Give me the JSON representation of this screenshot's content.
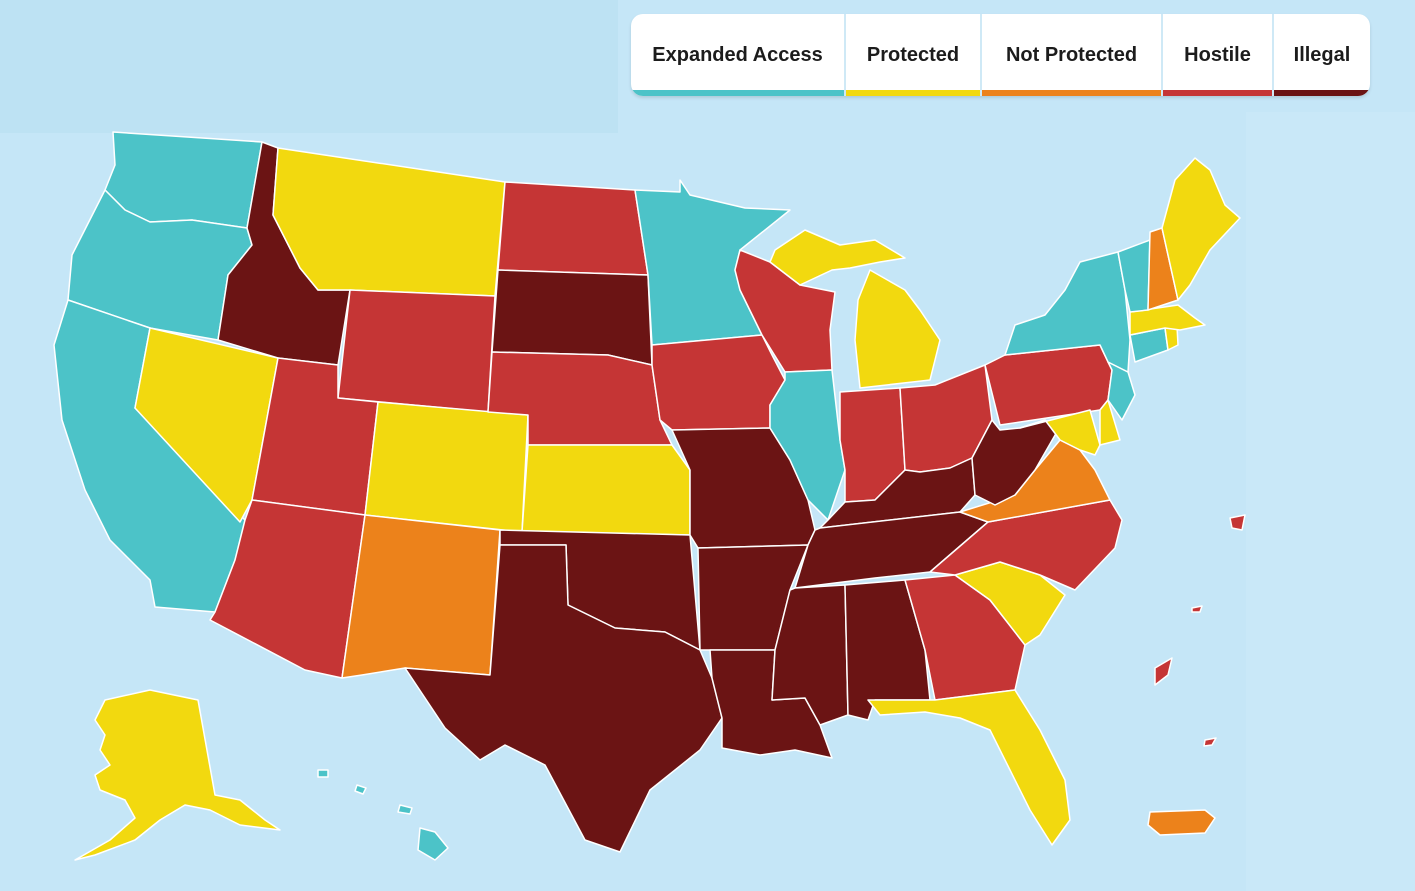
{
  "legend": {
    "items": [
      {
        "label": "Expanded Access",
        "color": "#4cc3c8"
      },
      {
        "label": "Protected",
        "color": "#f2d90f"
      },
      {
        "label": "Not Protected",
        "color": "#ec821b"
      },
      {
        "label": "Hostile",
        "color": "#c53535"
      },
      {
        "label": "Illegal",
        "color": "#6b1414"
      }
    ]
  },
  "states": [
    {
      "code": "WA",
      "status": "Expanded Access"
    },
    {
      "code": "OR",
      "status": "Expanded Access"
    },
    {
      "code": "CA",
      "status": "Expanded Access"
    },
    {
      "code": "NV",
      "status": "Protected"
    },
    {
      "code": "ID",
      "status": "Illegal"
    },
    {
      "code": "MT",
      "status": "Protected"
    },
    {
      "code": "WY",
      "status": "Hostile"
    },
    {
      "code": "UT",
      "status": "Hostile"
    },
    {
      "code": "AZ",
      "status": "Hostile"
    },
    {
      "code": "CO",
      "status": "Protected"
    },
    {
      "code": "NM",
      "status": "Not Protected"
    },
    {
      "code": "ND",
      "status": "Hostile"
    },
    {
      "code": "SD",
      "status": "Illegal"
    },
    {
      "code": "NE",
      "status": "Hostile"
    },
    {
      "code": "KS",
      "status": "Protected"
    },
    {
      "code": "OK",
      "status": "Illegal"
    },
    {
      "code": "TX",
      "status": "Illegal"
    },
    {
      "code": "MN",
      "status": "Expanded Access"
    },
    {
      "code": "IA",
      "status": "Hostile"
    },
    {
      "code": "MO",
      "status": "Illegal"
    },
    {
      "code": "AR",
      "status": "Illegal"
    },
    {
      "code": "LA",
      "status": "Illegal"
    },
    {
      "code": "WI",
      "status": "Hostile"
    },
    {
      "code": "IL",
      "status": "Expanded Access"
    },
    {
      "code": "MI",
      "status": "Protected"
    },
    {
      "code": "IN",
      "status": "Hostile"
    },
    {
      "code": "OH",
      "status": "Hostile"
    },
    {
      "code": "KY",
      "status": "Illegal"
    },
    {
      "code": "TN",
      "status": "Illegal"
    },
    {
      "code": "MS",
      "status": "Illegal"
    },
    {
      "code": "AL",
      "status": "Illegal"
    },
    {
      "code": "GA",
      "status": "Hostile"
    },
    {
      "code": "FL",
      "status": "Protected"
    },
    {
      "code": "SC",
      "status": "Protected"
    },
    {
      "code": "NC",
      "status": "Hostile"
    },
    {
      "code": "VA",
      "status": "Not Protected"
    },
    {
      "code": "WV",
      "status": "Illegal"
    },
    {
      "code": "PA",
      "status": "Hostile"
    },
    {
      "code": "NY",
      "status": "Expanded Access"
    },
    {
      "code": "VT",
      "status": "Expanded Access"
    },
    {
      "code": "NH",
      "status": "Not Protected"
    },
    {
      "code": "ME",
      "status": "Protected"
    },
    {
      "code": "MA",
      "status": "Protected"
    },
    {
      "code": "RI",
      "status": "Protected"
    },
    {
      "code": "CT",
      "status": "Expanded Access"
    },
    {
      "code": "NJ",
      "status": "Expanded Access"
    },
    {
      "code": "DE",
      "status": "Protected"
    },
    {
      "code": "MD",
      "status": "Protected"
    },
    {
      "code": "DC",
      "status": "Not Protected"
    },
    {
      "code": "AK",
      "status": "Protected"
    },
    {
      "code": "HI",
      "status": "Expanded Access"
    },
    {
      "code": "PR",
      "status": "Not Protected"
    },
    {
      "code": "USVI",
      "status": "Hostile"
    }
  ]
}
